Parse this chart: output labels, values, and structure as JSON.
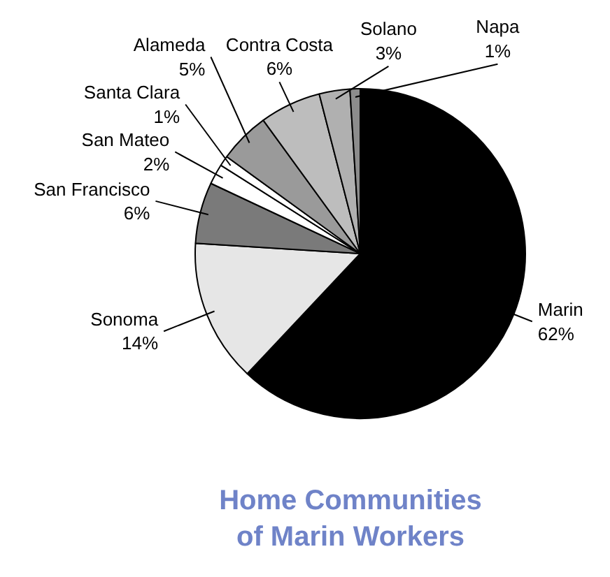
{
  "chart_data": {
    "type": "pie",
    "title": "Home Communities\nof Marin Workers",
    "categories": [
      "Marin",
      "Sonoma",
      "San Francisco",
      "San Mateo",
      "Santa Clara",
      "Alameda",
      "Contra Costa",
      "Solano",
      "Napa"
    ],
    "values": [
      62,
      14,
      6,
      2,
      1,
      5,
      6,
      3,
      1
    ],
    "value_labels": [
      "62%",
      "14%",
      "6%",
      "2%",
      "1%",
      "5%",
      "6%",
      "3%",
      "1%"
    ],
    "colors": [
      "#000000",
      "#e6e6e6",
      "#7a7a7a",
      "#ffffff",
      "#ffffff",
      "#9a9a9a",
      "#bdbdbd",
      "#b0b0b0",
      "#8c8c8c"
    ]
  }
}
